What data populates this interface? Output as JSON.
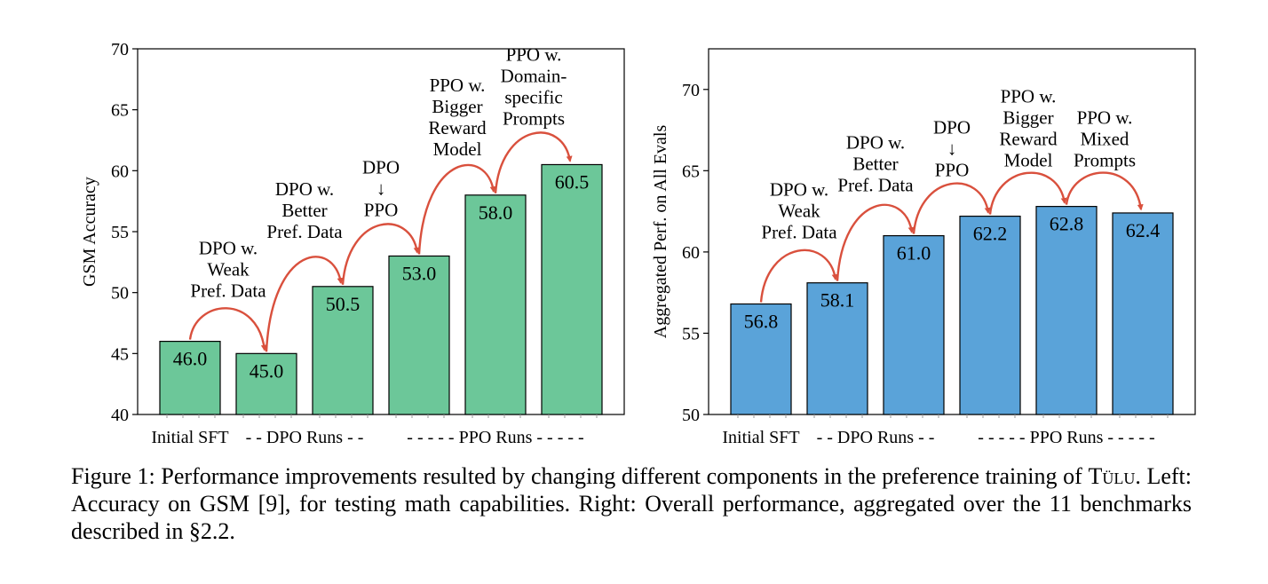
{
  "chart_data": [
    {
      "type": "bar",
      "ylabel": "GSM Accuracy",
      "ylim": [
        40,
        70
      ],
      "yticks": [
        40,
        45,
        50,
        55,
        60,
        65,
        70
      ],
      "values": [
        46.0,
        45.0,
        50.5,
        53.0,
        58.0,
        60.5
      ],
      "value_labels": [
        "46.0",
        "45.0",
        "50.5",
        "53.0",
        "58.0",
        "60.5"
      ],
      "bar_color": "#6cc799",
      "arrow_color": "#d9503d",
      "transitions": [
        [
          "DPO w.",
          "Weak",
          "Pref. Data"
        ],
        [
          "DPO w.",
          "Better",
          "Pref. Data"
        ],
        [
          "DPO",
          "↓",
          "PPO"
        ],
        [
          "PPO w.",
          "Bigger",
          "Reward",
          "Model"
        ],
        [
          "PPO w.",
          "Domain-",
          "specific",
          "Prompts"
        ]
      ],
      "groups": [
        {
          "label": "Initial SFT",
          "bars": [
            0
          ]
        },
        {
          "label": "- - DPO Runs - -",
          "bars": [
            1,
            2
          ]
        },
        {
          "label": "- - - - - PPO Runs - - - - -",
          "bars": [
            3,
            4,
            5
          ]
        }
      ]
    },
    {
      "type": "bar",
      "ylabel": "Aggregated Perf. on All Evals",
      "ylim": [
        50,
        72.5
      ],
      "yticks": [
        50,
        55,
        60,
        65,
        70
      ],
      "values": [
        56.8,
        58.1,
        61.0,
        62.2,
        62.8,
        62.4
      ],
      "value_labels": [
        "56.8",
        "58.1",
        "61.0",
        "62.2",
        "62.8",
        "62.4"
      ],
      "bar_color": "#5aa3d9",
      "arrow_color": "#d9503d",
      "transitions": [
        [
          "DPO w.",
          "Weak",
          "Pref. Data"
        ],
        [
          "DPO w.",
          "Better",
          "Pref. Data"
        ],
        [
          "DPO",
          "↓",
          "PPO"
        ],
        [
          "PPO w.",
          "Bigger",
          "Reward",
          "Model"
        ],
        [
          "PPO w.",
          "Mixed",
          "Prompts"
        ]
      ],
      "groups": [
        {
          "label": "Initial SFT",
          "bars": [
            0
          ]
        },
        {
          "label": "- - DPO Runs - -",
          "bars": [
            1,
            2
          ]
        },
        {
          "label": "- - - - - PPO Runs - - - - -",
          "bars": [
            3,
            4,
            5
          ]
        }
      ]
    }
  ],
  "caption": {
    "prefix": "Figure 1: Performance improvements resulted by changing different components in the preference training of ",
    "name": "Tülu",
    "suffix": ". Left: Accuracy on GSM [9], for testing math capabilities. Right: Overall performance, aggregated over the 11 benchmarks described in §2.2."
  }
}
